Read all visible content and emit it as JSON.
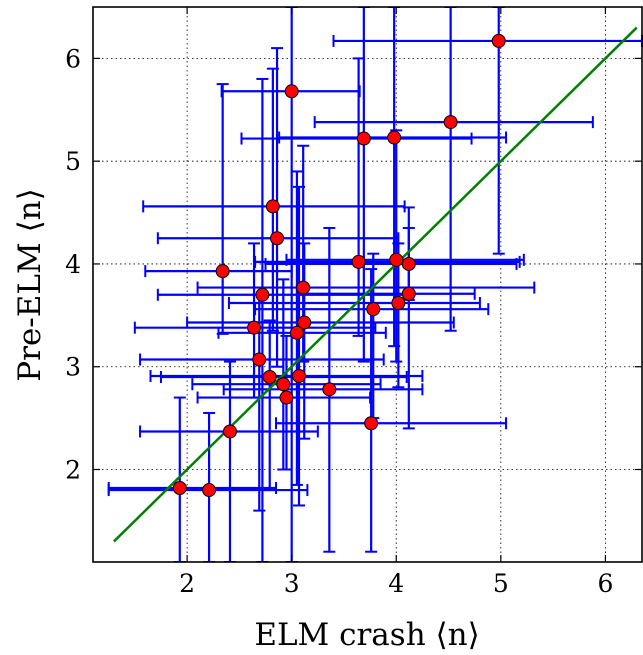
{
  "chart_data": {
    "type": "scatter",
    "title": "",
    "xlabel": "ELM crash ⟨n⟩",
    "ylabel": "Pre-ELM ⟨n⟩",
    "xlim": [
      1.1,
      6.35
    ],
    "ylim": [
      1.1,
      6.5
    ],
    "xticks": [
      2,
      3,
      4,
      5,
      6
    ],
    "yticks": [
      2,
      3,
      4,
      5,
      6
    ],
    "xtick_labels": [
      "2",
      "3",
      "4",
      "5",
      "6"
    ],
    "ytick_labels": [
      "2",
      "3",
      "4",
      "5",
      "6"
    ],
    "grid": true,
    "grid_style": "dotted",
    "colors": {
      "points": "#ff0000",
      "point_edge": "#000000",
      "errorbars": "#0000ff",
      "fit_line": "#008000"
    },
    "series": [
      {
        "points": [
          {
            "x": 4.98,
            "y": 6.17,
            "xerr": [
              3.4,
              6.35
            ],
            "yerr": [
              4.1,
              6.5
            ]
          },
          {
            "x": 3.0,
            "y": 5.68,
            "xerr": [
              2.33,
              3.65
            ],
            "yerr": [
              1.1,
              6.5
            ]
          },
          {
            "x": 4.52,
            "y": 5.38,
            "xerr": [
              3.22,
              5.88
            ],
            "yerr": [
              3.35,
              6.5
            ]
          },
          {
            "x": 3.69,
            "y": 5.22,
            "xerr": [
              2.52,
              4.72
            ],
            "yerr": [
              3.05,
              6.5
            ]
          },
          {
            "x": 3.98,
            "y": 5.23,
            "xerr": [
              2.88,
              5.05
            ],
            "yerr": [
              3.2,
              6.5
            ]
          },
          {
            "x": 2.82,
            "y": 4.56,
            "xerr": [
              1.58,
              4.08
            ],
            "yerr": [
              3.35,
              5.9
            ]
          },
          {
            "x": 2.86,
            "y": 4.25,
            "xerr": [
              1.72,
              4.02
            ],
            "yerr": [
              3.0,
              6.1
            ]
          },
          {
            "x": 2.34,
            "y": 3.93,
            "xerr": [
              1.6,
              3.0
            ],
            "yerr": [
              3.32,
              5.75
            ]
          },
          {
            "x": 3.64,
            "y": 4.02,
            "xerr": [
              2.65,
              5.18
            ],
            "yerr": [
              3.3,
              6.0
            ]
          },
          {
            "x": 4.0,
            "y": 4.04,
            "xerr": [
              2.95,
              5.22
            ],
            "yerr": [
              3.05,
              5.3
            ]
          },
          {
            "x": 4.12,
            "y": 4.0,
            "xerr": [
              2.75,
              5.15
            ],
            "yerr": [
              3.65,
              4.55
            ]
          },
          {
            "x": 2.72,
            "y": 3.7,
            "xerr": [
              1.72,
              4.15
            ],
            "yerr": [
              1.1,
              5.8
            ]
          },
          {
            "x": 3.11,
            "y": 3.77,
            "xerr": [
              2.1,
              5.32
            ],
            "yerr": [
              3.05,
              5.15
            ]
          },
          {
            "x": 4.02,
            "y": 3.62,
            "xerr": [
              2.4,
              4.8
            ],
            "yerr": [
              2.8,
              4.2
            ]
          },
          {
            "x": 4.12,
            "y": 3.71,
            "xerr": [
              3.05,
              4.75
            ],
            "yerr": [
              2.4,
              4.35
            ]
          },
          {
            "x": 3.78,
            "y": 3.56,
            "xerr": [
              2.65,
              4.88
            ],
            "yerr": [
              2.5,
              4.1
            ]
          },
          {
            "x": 3.12,
            "y": 3.43,
            "xerr": [
              2.0,
              4.55
            ],
            "yerr": [
              2.3,
              4.2
            ]
          },
          {
            "x": 2.64,
            "y": 3.38,
            "xerr": [
              1.5,
              3.8
            ],
            "yerr": [
              2.7,
              4.2
            ]
          },
          {
            "x": 3.05,
            "y": 3.33,
            "xerr": [
              2.3,
              3.9
            ],
            "yerr": [
              1.85,
              4.9
            ]
          },
          {
            "x": 2.69,
            "y": 3.07,
            "xerr": [
              1.55,
              3.88
            ],
            "yerr": [
              1.6,
              3.7
            ]
          },
          {
            "x": 2.79,
            "y": 2.9,
            "xerr": [
              1.75,
              4.1
            ],
            "yerr": [
              1.8,
              3.45
            ]
          },
          {
            "x": 2.92,
            "y": 2.83,
            "xerr": [
              2.05,
              3.85
            ],
            "yerr": [
              2.0,
              3.85
            ]
          },
          {
            "x": 3.07,
            "y": 2.91,
            "xerr": [
              1.65,
              4.25
            ],
            "yerr": [
              1.65,
              4.75
            ]
          },
          {
            "x": 3.36,
            "y": 2.78,
            "xerr": [
              2.35,
              4.25
            ],
            "yerr": [
              1.2,
              4.35
            ]
          },
          {
            "x": 2.95,
            "y": 2.7,
            "xerr": [
              2.1,
              3.75
            ],
            "yerr": [
              2.0,
              3.3
            ]
          },
          {
            "x": 2.41,
            "y": 2.37,
            "xerr": [
              1.55,
              3.25
            ],
            "yerr": [
              1.1,
              3.05
            ]
          },
          {
            "x": 3.76,
            "y": 2.45,
            "xerr": [
              2.85,
              5.05
            ],
            "yerr": [
              1.2,
              3.95
            ]
          },
          {
            "x": 1.93,
            "y": 1.82,
            "xerr": [
              1.25,
              2.85
            ],
            "yerr": [
              1.1,
              2.7
            ]
          },
          {
            "x": 2.21,
            "y": 1.8,
            "xerr": [
              1.25,
              3.15
            ],
            "yerr": [
              1.1,
              2.55
            ]
          }
        ]
      }
    ],
    "fit_line": {
      "x": [
        1.3,
        6.3
      ],
      "y": [
        1.3,
        6.3
      ]
    }
  }
}
